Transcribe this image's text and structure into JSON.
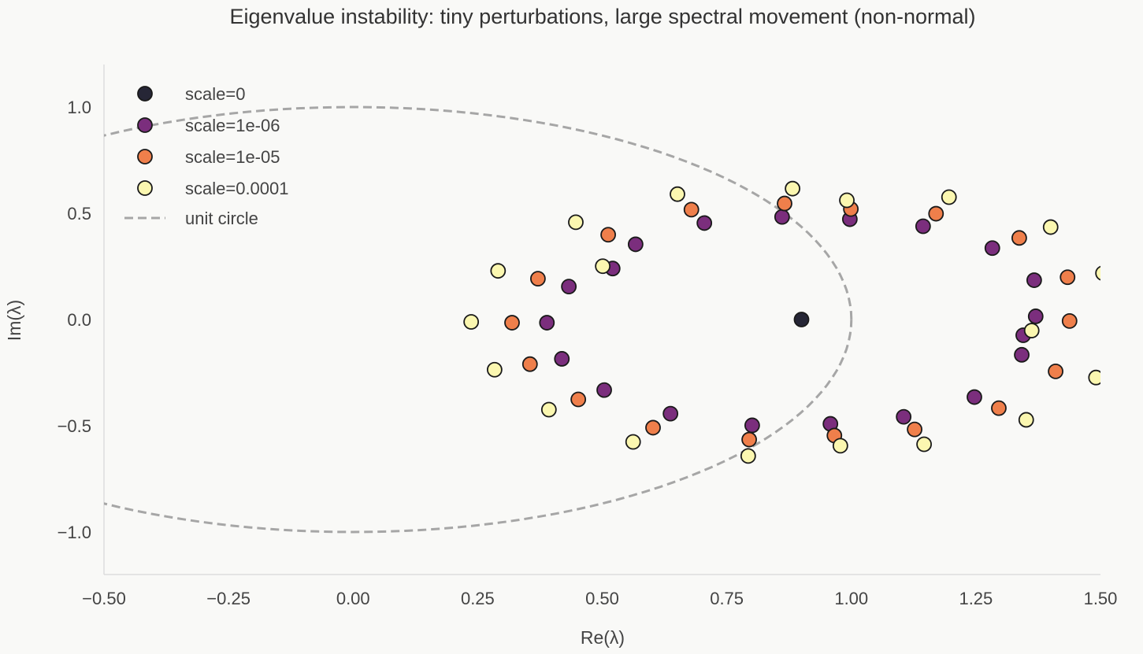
{
  "chart_data": {
    "type": "scatter",
    "title": "Eigenvalue instability: tiny perturbations, large spectral movement (non-normal)",
    "xlabel": "Re(λ)",
    "ylabel": "Im(λ)",
    "xlim": [
      -0.5,
      1.5
    ],
    "ylim": [
      -1.2,
      1.2
    ],
    "grid": false,
    "legend_position": "top-left",
    "x_ticks": [
      "−0.50",
      "−0.25",
      "0.00",
      "0.25",
      "0.50",
      "0.75",
      "1.00",
      "1.25",
      "1.50"
    ],
    "x_tick_values": [
      -0.5,
      -0.25,
      0,
      0.25,
      0.5,
      0.75,
      1.0,
      1.25,
      1.5
    ],
    "y_ticks": [
      "−1.0",
      "−0.5",
      "0.0",
      "0.5",
      "1.0"
    ],
    "y_tick_values": [
      -1,
      -0.5,
      0,
      0.5,
      1
    ],
    "series": [
      {
        "name": "scale=0",
        "color": "#262636",
        "points": [
          [
            0.9,
            0.0
          ]
        ]
      },
      {
        "name": "scale=1e-06",
        "color": "#7b2e7d",
        "points": [
          [
            0.861,
            0.483
          ],
          [
            0.997,
            0.472
          ],
          [
            0.705,
            0.454
          ],
          [
            0.567,
            0.354
          ],
          [
            0.521,
            0.24
          ],
          [
            0.433,
            0.155
          ],
          [
            0.389,
            -0.015
          ],
          [
            0.419,
            -0.185
          ],
          [
            0.504,
            -0.332
          ],
          [
            0.637,
            -0.443
          ],
          [
            0.801,
            -0.498
          ],
          [
            0.958,
            -0.491
          ],
          [
            1.105,
            -0.458
          ],
          [
            1.247,
            -0.365
          ],
          [
            1.342,
            -0.166
          ],
          [
            1.345,
            -0.074
          ],
          [
            1.37,
            0.015
          ],
          [
            1.367,
            0.185
          ],
          [
            1.283,
            0.336
          ],
          [
            1.144,
            0.439
          ]
        ]
      },
      {
        "name": "scale=1e-05",
        "color": "#ef7f4b",
        "points": [
          [
            0.866,
            0.546
          ],
          [
            0.999,
            0.52
          ],
          [
            0.679,
            0.517
          ],
          [
            0.512,
            0.399
          ],
          [
            0.371,
            0.192
          ],
          [
            0.319,
            -0.015
          ],
          [
            0.355,
            -0.21
          ],
          [
            0.452,
            -0.376
          ],
          [
            0.602,
            -0.509
          ],
          [
            0.795,
            -0.565
          ],
          [
            0.966,
            -0.546
          ],
          [
            1.127,
            -0.517
          ],
          [
            1.296,
            -0.417
          ],
          [
            1.41,
            -0.244
          ],
          [
            1.438,
            -0.007
          ],
          [
            1.434,
            0.199
          ],
          [
            1.337,
            0.384
          ],
          [
            1.17,
            0.498
          ]
        ]
      },
      {
        "name": "scale=0.0001",
        "color": "#fbf7b0",
        "points": [
          [
            0.882,
            0.616
          ],
          [
            0.991,
            0.561
          ],
          [
            0.651,
            0.59
          ],
          [
            0.447,
            0.458
          ],
          [
            0.501,
            0.251
          ],
          [
            0.291,
            0.229
          ],
          [
            0.237,
            -0.011
          ],
          [
            0.284,
            -0.236
          ],
          [
            0.393,
            -0.424
          ],
          [
            0.562,
            -0.576
          ],
          [
            0.793,
            -0.642
          ],
          [
            0.978,
            -0.594
          ],
          [
            1.146,
            -0.587
          ],
          [
            1.351,
            -0.472
          ],
          [
            1.491,
            -0.273
          ],
          [
            1.362,
            -0.052
          ],
          [
            1.4,
            0.435
          ],
          [
            1.505,
            0.218
          ],
          [
            1.196,
            0.576
          ]
        ]
      }
    ],
    "reference_line": {
      "name": "unit circle",
      "color": "#a6a6a6",
      "style": "dashed"
    }
  }
}
